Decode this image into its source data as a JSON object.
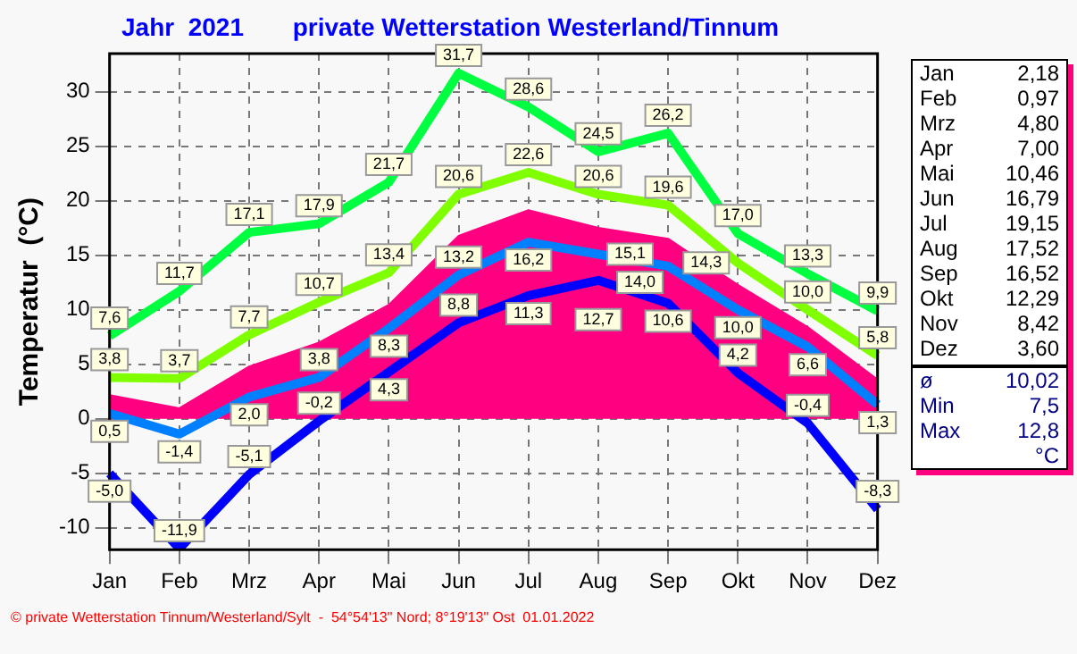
{
  "chart_data": {
    "type": "line",
    "title": "Jahr  2021",
    "subtitle": "private Wetterstation Westerland/Tinnum",
    "ylabel": "Temperatur  (°C)",
    "categories": [
      "Jan",
      "Feb",
      "Mrz",
      "Apr",
      "Mai",
      "Jun",
      "Jul",
      "Aug",
      "Sep",
      "Okt",
      "Nov",
      "Dez"
    ],
    "series": [
      {
        "type": "area",
        "color": "#ff0080",
        "values": [
          2.18,
          0.97,
          4.8,
          7.0,
          10.46,
          16.79,
          19.15,
          17.52,
          16.52,
          12.29,
          8.42,
          3.6
        ]
      },
      {
        "color": "#00ff40",
        "values": [
          7.6,
          11.7,
          17.1,
          17.9,
          21.7,
          31.7,
          28.6,
          24.5,
          26.2,
          17.0,
          13.3,
          9.9
        ],
        "value_labels": [
          "7,6",
          "11,7",
          "17,1",
          "17,9",
          "21,7",
          "31,7",
          "28,6",
          "24,5",
          "26,2",
          "17,0",
          "13,3",
          "9,9"
        ]
      },
      {
        "color": "#80ff00",
        "values": [
          3.8,
          3.7,
          7.7,
          10.7,
          13.4,
          20.6,
          22.6,
          20.6,
          19.6,
          14.3,
          10.0,
          5.8
        ],
        "value_labels": [
          "3,8",
          "3,7",
          "7,7",
          "10,7",
          "13,4",
          "20,6",
          "22,6",
          "20,6",
          "19,6",
          "14,3",
          "10,0",
          "5,8"
        ]
      },
      {
        "color": "#0080ff",
        "values": [
          0.5,
          -1.4,
          2.0,
          3.8,
          8.3,
          13.2,
          16.2,
          15.1,
          14.0,
          10.0,
          6.6,
          1.3
        ],
        "value_labels": [
          "0,5",
          "-1,4",
          "2,0",
          "3,8",
          "8,3",
          "13,2",
          "16,2",
          "15,1",
          "14,0",
          "10,0",
          "6,6",
          "1,3"
        ]
      },
      {
        "color": "#0000ff",
        "values": [
          -5.0,
          -11.9,
          -5.1,
          -0.2,
          4.3,
          8.8,
          11.3,
          12.7,
          10.6,
          4.2,
          -0.4,
          -8.3
        ],
        "value_labels": [
          "-5,0",
          "-11,9",
          "-5,1",
          "-0,2",
          "4,3",
          "8,8",
          "11,3",
          "12,7",
          "10,6",
          "4,2",
          "-0,4",
          "-8,3"
        ]
      }
    ],
    "ylim": [
      -12,
      33.5
    ],
    "yticks": [
      -10,
      -5,
      0,
      5,
      10,
      15,
      20,
      25,
      30
    ],
    "grid": true,
    "legend": false,
    "marker": "none",
    "line_style": "solid",
    "annotations": [
      "Jan 2,18",
      "Feb 0,97",
      "Mrz 4,80",
      "Apr 7,00",
      "Mai 10,46",
      "Jun 16,79",
      "Jul 19,15",
      "Aug 17,52",
      "Sep 16,52",
      "Okt 12,29",
      "Nov 8,42",
      "Dez 3,60",
      "ø 10,02",
      "Min 7,5",
      "Max 12,8",
      "°C",
      "© private Wetterstation Tinnum/Westerland/Sylt  -  54°54'13\" Nord; 8°19'13\" Ost  01.01.2022"
    ]
  }
}
